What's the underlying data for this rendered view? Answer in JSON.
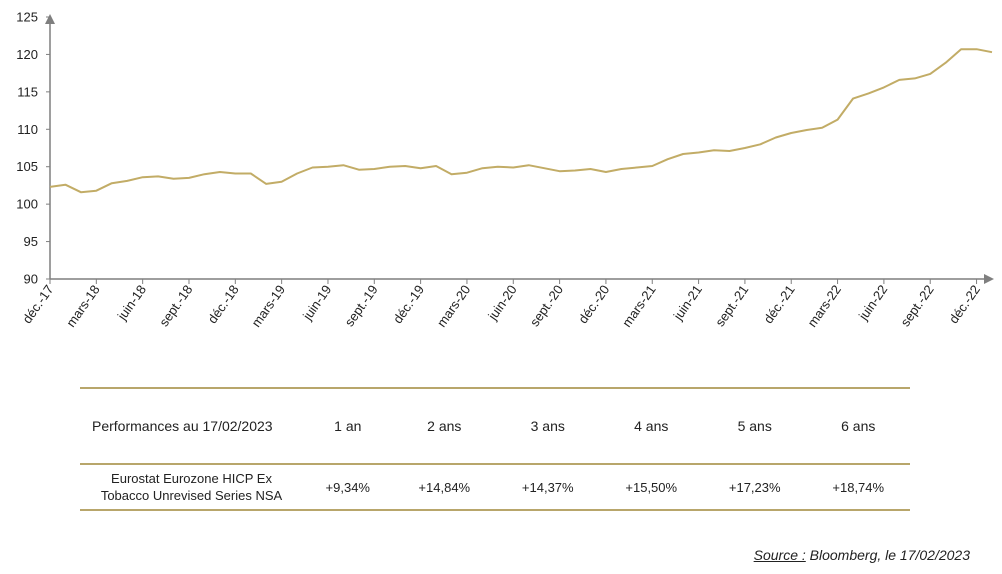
{
  "colors": {
    "line": "#c2ac66",
    "axis": "#7f7f7f",
    "rule": "#b8a66b"
  },
  "chart_data": {
    "type": "line",
    "title": "",
    "xlabel": "",
    "ylabel": "",
    "ylim": [
      90,
      125
    ],
    "yticks": [
      90,
      95,
      100,
      105,
      110,
      115,
      120,
      125
    ],
    "grid": false,
    "x_tick_labels": [
      "déc.-17",
      "mars-18",
      "juin-18",
      "sept.-18",
      "déc.-18",
      "mars-19",
      "juin-19",
      "sept.-19",
      "déc.-19",
      "mars-20",
      "juin-20",
      "sept.-20",
      "déc.-20",
      "mars-21",
      "juin-21",
      "sept.-21",
      "déc.-21",
      "mars-22",
      "juin-22",
      "sept.-22",
      "déc.-22"
    ],
    "series": [
      {
        "name": "",
        "values": [
          102.3,
          102.6,
          101.6,
          101.8,
          102.8,
          103.1,
          103.6,
          103.7,
          103.4,
          103.5,
          104.0,
          104.3,
          104.1,
          104.1,
          102.7,
          103.0,
          104.1,
          104.9,
          105.0,
          105.2,
          104.6,
          104.7,
          105.0,
          105.1,
          104.8,
          105.1,
          104.0,
          104.2,
          104.8,
          105.0,
          104.9,
          105.2,
          104.8,
          104.4,
          104.5,
          104.7,
          104.3,
          104.7,
          104.9,
          105.1,
          106.0,
          106.7,
          106.9,
          107.2,
          107.1,
          107.5,
          108.0,
          108.9,
          109.5,
          109.9,
          110.2,
          111.3,
          114.1,
          114.8,
          115.6,
          116.6,
          116.8,
          117.4,
          118.9,
          120.7,
          120.7,
          120.3
        ]
      }
    ]
  },
  "table": {
    "header_label": "Performances au 17/02/2023",
    "periods": [
      "1 an",
      "2 ans",
      "3 ans",
      "4 ans",
      "5 ans",
      "6 ans"
    ],
    "row_name_line1": "Eurostat Eurozone HICP Ex",
    "row_name_line2": "Tobacco Unrevised Series NSA",
    "values": [
      "+9,34%",
      "+14,84%",
      "+14,37%",
      "+15,50%",
      "+17,23%",
      "+18,74%"
    ]
  },
  "source": {
    "label": "Source :",
    "text": " Bloomberg, le 17/02/2023"
  }
}
